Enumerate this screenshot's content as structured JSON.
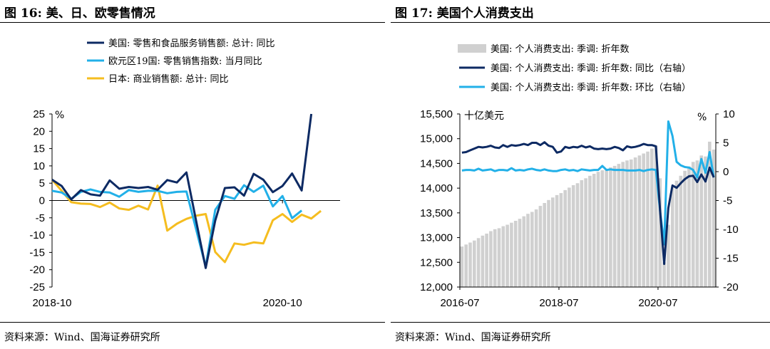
{
  "left": {
    "title": "图 16:  美、日、欧零售情况",
    "source": "资料来源：Wind、国海证券研究所",
    "chart_data": {
      "type": "line",
      "unit_label": "%",
      "ylim": [
        -25,
        25
      ],
      "yticks": [
        25,
        20,
        15,
        10,
        5,
        0,
        -5,
        -10,
        -15,
        -20,
        -25
      ],
      "x_tick_labels": [
        "2018-10",
        "2020-10"
      ],
      "x_tick_index": [
        0,
        24
      ],
      "n_points": 31,
      "legend_placement": "top-left",
      "series": [
        {
          "name": "美国: 零售和食品服务销售额: 总计: 同比",
          "color": "#0d2a63",
          "values": [
            6.0,
            4.2,
            0.3,
            3.0,
            1.8,
            1.4,
            5.8,
            3.4,
            3.9,
            3.6,
            3.9,
            3.1,
            5.9,
            5.2,
            8.1,
            -5.8,
            -19.5,
            -5.8,
            3.6,
            3.8,
            1.4,
            7.7,
            6.0,
            2.4,
            4.2,
            7.8,
            2.9,
            25.0
          ]
        },
        {
          "name": "欧元区19国: 零售销售指数: 当月同比",
          "color": "#22b0e8",
          "values": [
            2.8,
            2.3,
            0.5,
            2.5,
            3.2,
            2.5,
            2.3,
            1.1,
            3.0,
            2.5,
            2.8,
            2.8,
            2.1,
            2.5,
            2.6,
            -8.3,
            -19.1,
            -2.7,
            1.3,
            0.5,
            4.4,
            2.5,
            4.3,
            -1.7,
            1.3,
            -5.1,
            -2.9
          ]
        },
        {
          "name": "日本: 商业销售额: 总计: 同比",
          "color": "#f5bd1f",
          "values": [
            6.0,
            2.8,
            -0.5,
            -0.9,
            -1.0,
            -1.9,
            -0.6,
            -2.3,
            -2.7,
            -1.5,
            -2.6,
            4.3,
            -8.7,
            -6.7,
            -5.3,
            -4.4,
            -3.9,
            -14.9,
            -17.8,
            -12.4,
            -12.8,
            -12.1,
            -12.4,
            -5.7,
            -3.9,
            -6.2,
            -4.1,
            -5.2,
            -3.0
          ]
        }
      ]
    }
  },
  "right": {
    "title": "图 17:  美国个人消费支出",
    "source": "资料来源：Wind、国海证券研究所",
    "chart_data": {
      "type": "bar+line",
      "left_unit_label": "十亿美元",
      "right_unit_label": "%",
      "ylim_left": [
        12000,
        15500
      ],
      "yticks_left": [
        "15,500",
        "15,000",
        "14,500",
        "14,000",
        "13,500",
        "13,000",
        "12,500",
        "12,000"
      ],
      "yticks_left_values": [
        15500,
        15000,
        14500,
        14000,
        13500,
        13000,
        12500,
        12000
      ],
      "ylim_right": [
        -20,
        10
      ],
      "yticks_right": [
        10,
        5,
        0,
        -5,
        -10,
        -15,
        -20
      ],
      "x_tick_labels": [
        "2016-07",
        "2018-07",
        "2020-07"
      ],
      "x_tick_index": [
        0,
        24,
        48
      ],
      "legend_placement": "top-left",
      "series": [
        {
          "name": "美国: 个人消费支出: 季调: 折年数",
          "color": "#d0d0d0",
          "axis": "left",
          "values": [
            12820,
            12860,
            12900,
            12940,
            12990,
            13040,
            13080,
            13130,
            13170,
            13190,
            13230,
            13260,
            13300,
            13340,
            13380,
            13430,
            13480,
            13520,
            13570,
            13640,
            13700,
            13760,
            13810,
            13860,
            13900,
            13960,
            14010,
            14060,
            14100,
            14160,
            14200,
            14250,
            14290,
            14330,
            14360,
            14380,
            14420,
            14450,
            14490,
            14530,
            14560,
            14580,
            14620,
            14660,
            14700,
            14740,
            14800,
            14860,
            14200,
            12500,
            13260,
            14010,
            14150,
            14250,
            14350,
            14440,
            14530,
            14560,
            14660,
            14640,
            14940,
            14780
          ]
        },
        {
          "name": "美国: 个人消费支出: 季调: 折年数: 同比（右轴）",
          "color": "#0d2a63",
          "axis": "right",
          "values": [
            3.3,
            3.4,
            3.7,
            4.0,
            4.3,
            4.2,
            4.3,
            4.5,
            4.2,
            4.1,
            4.6,
            4.3,
            4.6,
            4.5,
            4.6,
            4.8,
            4.6,
            5.0,
            5.0,
            4.6,
            5.1,
            4.5,
            4.3,
            3.3,
            3.5,
            4.3,
            4.1,
            4.3,
            4.2,
            4.5,
            4.2,
            4.4,
            4.0,
            3.9,
            4.0,
            3.9,
            4.0,
            4.3,
            4.1,
            3.7,
            4.4,
            4.2,
            4.3,
            4.5,
            4.8,
            4.6,
            4.6,
            4.4,
            -6.7,
            -16.0,
            -6.3,
            -2.4,
            -2.8,
            -2.0,
            -1.3,
            -0.8,
            -0.7,
            -1.8,
            -0.5,
            -1.7,
            0.7,
            -1.0
          ]
        },
        {
          "name": "美国: 个人消费支出: 季调: 折年数: 环比（右轴）",
          "color": "#22b0e8",
          "axis": "right",
          "values": [
            0.2,
            0.3,
            0.3,
            0.2,
            0.5,
            0.2,
            0.3,
            0.4,
            0.1,
            0.3,
            0.3,
            0.2,
            0.6,
            0.2,
            0.3,
            0.2,
            0.4,
            0.5,
            0.3,
            0.2,
            0.4,
            0.2,
            0.1,
            0.1,
            0.3,
            0.4,
            0.2,
            0.3,
            0.1,
            0.4,
            0.3,
            0.2,
            0.3,
            0.3,
            1.0,
            0.3,
            0.4,
            0.3,
            0.3,
            0.3,
            0.2,
            0.2,
            0.2,
            0.3,
            0.1,
            0.3,
            0.4,
            0.3,
            -6.8,
            -12.6,
            8.7,
            6.2,
            1.7,
            1.1,
            0.8,
            0.7,
            0.3,
            -1.0,
            2.2,
            -0.2,
            3.4,
            -1.0
          ]
        }
      ]
    }
  }
}
